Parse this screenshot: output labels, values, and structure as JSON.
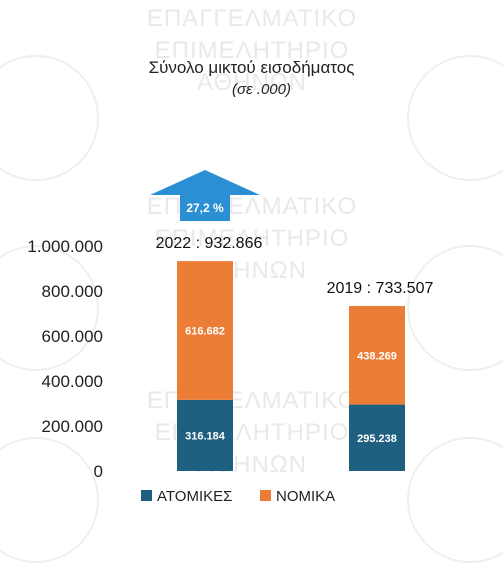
{
  "chart_data": {
    "type": "bar",
    "stacked": true,
    "title": "Σύνολο μικτού εισοδήματος",
    "subtitle": "(σε .000)",
    "categories": [
      "2022",
      "2019"
    ],
    "series": [
      {
        "name": "ΑΤΟΜΙΚΕΣ",
        "values": [
          316.184,
          295.238
        ],
        "labels": [
          "316.184",
          "295.238"
        ]
      },
      {
        "name": "ΝΟΜΙΚΑ",
        "values": [
          616.682,
          438.269
        ],
        "labels": [
          "616.682",
          "438.269"
        ]
      }
    ],
    "totals_labels": [
      "2022 : 932.866",
      "2019 : 733.507"
    ],
    "change_label": "27,2 %",
    "y_ticks": [
      "1.000.000",
      "800.000",
      "600.000",
      "400.000",
      "200.000",
      "0"
    ],
    "ylim": [
      0,
      1000
    ],
    "grid": false,
    "legend_position": "bottom"
  },
  "colors": {
    "atomikes": "#1f5f7f",
    "nomika": "#ec7d37",
    "arrow": "#2b8fd4",
    "text": "#222222"
  },
  "watermark": [
    "ΕΠΑΓΓΕΛΜΑΤΙΚΟ",
    "ΕΠΙΜΕΛΗΤΗΡΙΟ",
    "ΑΘΗΝΩΝ"
  ]
}
